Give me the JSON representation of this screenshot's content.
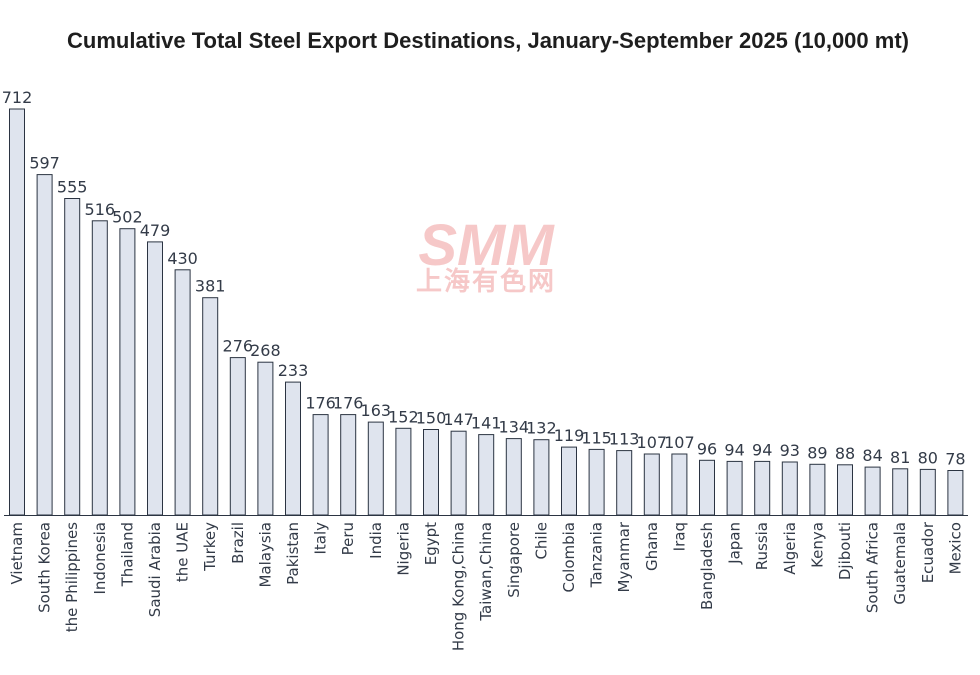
{
  "chart_data": {
    "type": "bar",
    "title": "Cumulative Total Steel Export Destinations, January-September 2025 (10,000 mt)",
    "xlabel": "",
    "ylabel": "",
    "ylim": [
      0,
      740
    ],
    "grid": false,
    "legend": "none",
    "categories": [
      "Vietnam",
      "South Korea",
      "the Philippines",
      "Indonesia",
      "Thailand",
      "Saudi Arabia",
      "the UAE",
      "Turkey",
      "Brazil",
      "Malaysia",
      "Pakistan",
      "Italy",
      "Peru",
      "India",
      "Nigeria",
      "Egypt",
      "Hong Kong,China",
      "Taiwan,China",
      "Singapore",
      "Chile",
      "Colombia",
      "Tanzania",
      "Myanmar",
      "Ghana",
      "Iraq",
      "Bangladesh",
      "Japan",
      "Russia",
      "Algeria",
      "Kenya",
      "Djibouti",
      "South Africa",
      "Guatemala",
      "Ecuador",
      "Mexico"
    ],
    "values": [
      712,
      597,
      555,
      516,
      502,
      479,
      430,
      381,
      276,
      268,
      233,
      176,
      176,
      163,
      152,
      150,
      147,
      141,
      134,
      132,
      119,
      115,
      113,
      107,
      107,
      96,
      94,
      94,
      93,
      89,
      88,
      84,
      81,
      80,
      78
    ],
    "value_labels": [
      "712",
      "597",
      "555",
      "516",
      "502",
      "479",
      "430",
      "381",
      "276",
      "268",
      "233",
      "176",
      "176",
      "163",
      "152",
      "150",
      "147",
      "141",
      "134",
      "132",
      "119",
      "115",
      "113",
      "107",
      "107",
      "96",
      "94",
      "94",
      "93",
      "89",
      "88",
      "84",
      "81",
      "80",
      "78"
    ]
  },
  "watermark": {
    "logo": "SMM",
    "subtitle": "上海有色网"
  },
  "colors": {
    "bar_fill": "#dfe4ee",
    "bar_stroke": "#2b3442",
    "axis": "#2b3442",
    "text": "#333b48",
    "watermark": "#f0a9a9"
  }
}
